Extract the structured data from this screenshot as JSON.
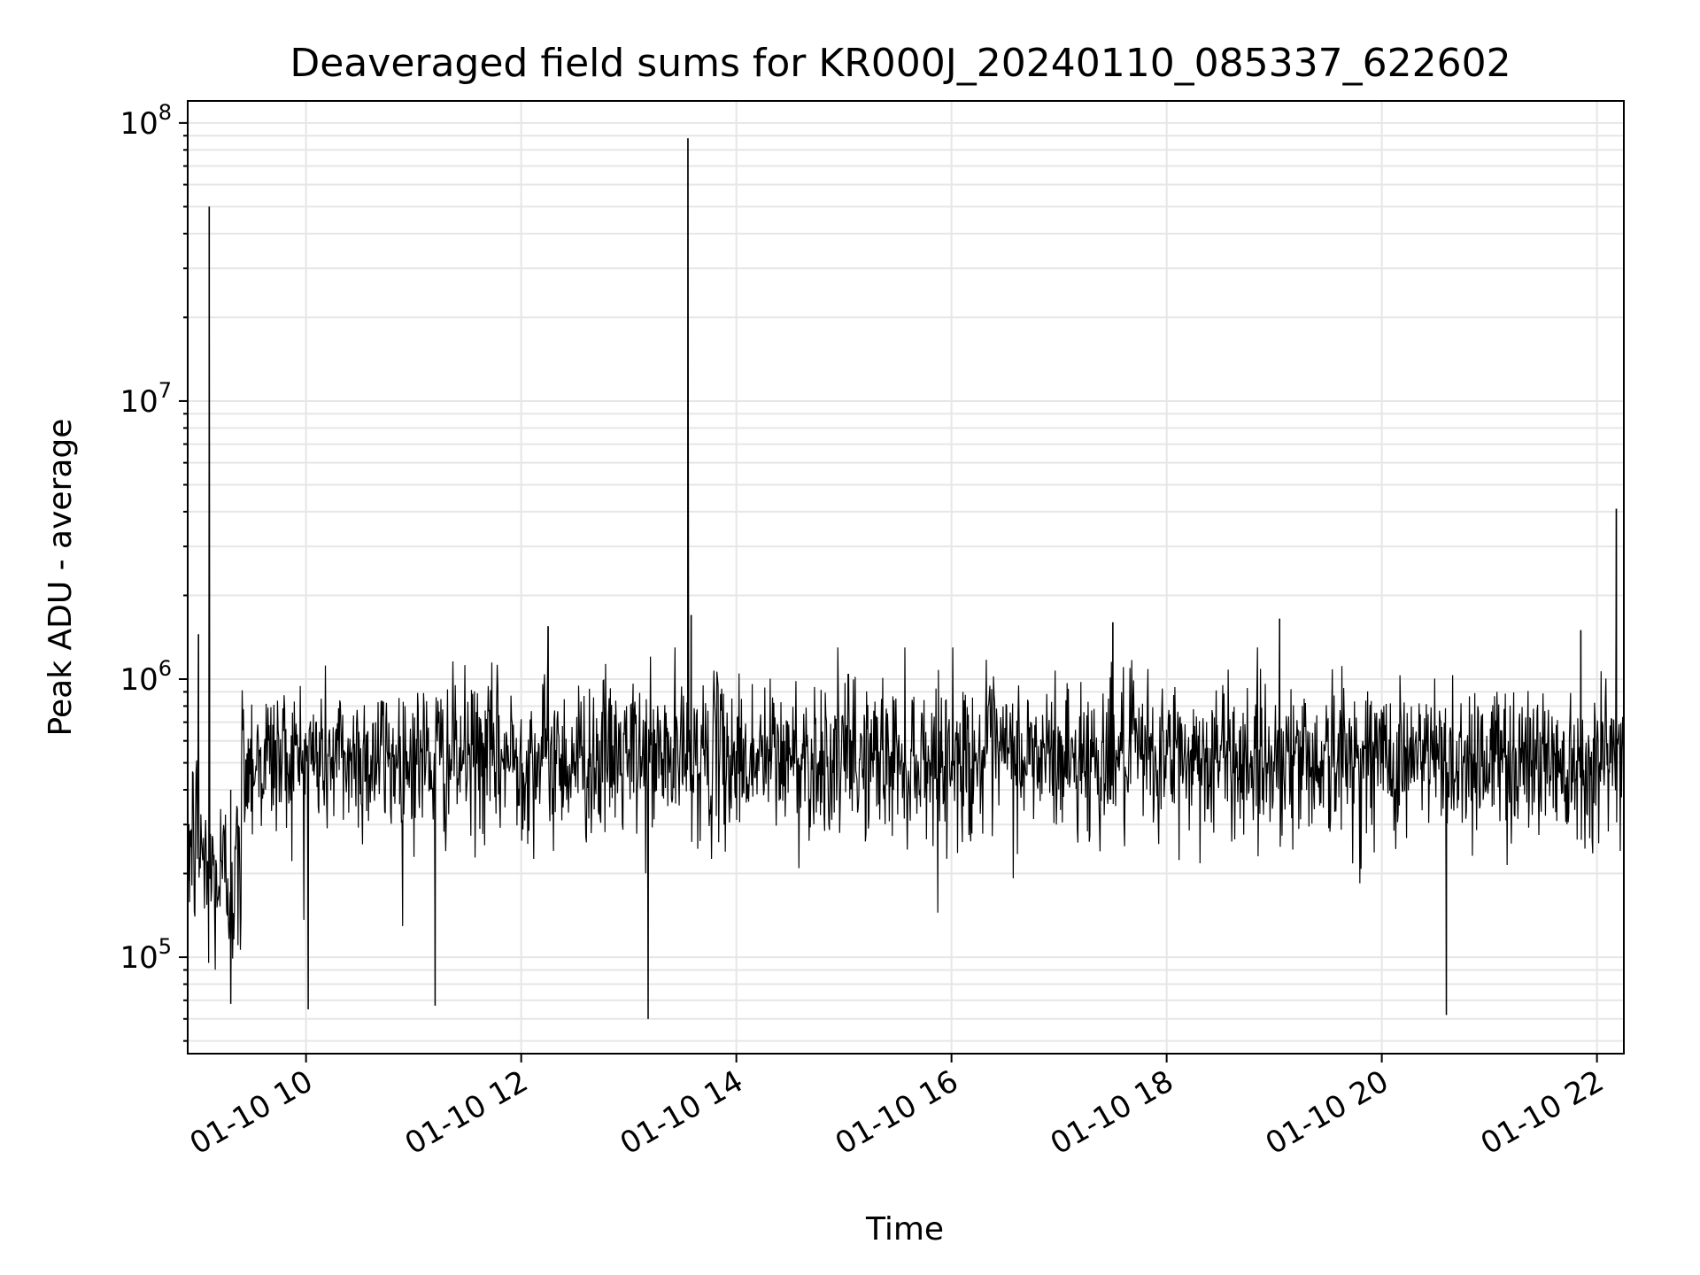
{
  "chart_data": {
    "type": "line",
    "title": "Deaveraged field sums for KR000J_20240110_085337_622602",
    "xlabel": "Time",
    "ylabel": "Peak ADU - average",
    "yscale": "log",
    "grid": true,
    "line_color": "#000000",
    "grid_color": "#e6e6e6",
    "xlim_hours": [
      8.9,
      22.25
    ],
    "ylim": [
      45000,
      120000000
    ],
    "x_ticks": [
      {
        "hour": 10,
        "label": "01-10 10"
      },
      {
        "hour": 12,
        "label": "01-10 12"
      },
      {
        "hour": 14,
        "label": "01-10 14"
      },
      {
        "hour": 16,
        "label": "01-10 16"
      },
      {
        "hour": 18,
        "label": "01-10 18"
      },
      {
        "hour": 20,
        "label": "01-10 20"
      },
      {
        "hour": 22,
        "label": "01-10 22"
      }
    ],
    "y_ticks": [
      {
        "value": 100000,
        "base": "10",
        "exp": "5"
      },
      {
        "value": 1000000,
        "base": "10",
        "exp": "6"
      },
      {
        "value": 10000000,
        "base": "10",
        "exp": "7"
      },
      {
        "value": 100000000,
        "base": "10",
        "exp": "8"
      }
    ],
    "segments": [
      {
        "start": 8.9,
        "end": 9.05,
        "median": 260000,
        "spread": 0.6
      },
      {
        "start": 9.05,
        "end": 9.4,
        "median": 190000,
        "spread": 0.55
      },
      {
        "start": 9.4,
        "end": 22.25,
        "median": 520000,
        "spread": 0.45
      }
    ],
    "peaks": [
      {
        "hour": 9.1,
        "value": 50000000
      },
      {
        "hour": 13.55,
        "value": 88000000
      },
      {
        "hour": 13.58,
        "value": 1700000
      },
      {
        "hour": 22.18,
        "value": 4100000
      },
      {
        "hour": 9.0,
        "value": 1450000
      },
      {
        "hour": 12.25,
        "value": 1550000
      },
      {
        "hour": 17.5,
        "value": 1600000
      },
      {
        "hour": 19.05,
        "value": 1650000
      },
      {
        "hour": 21.85,
        "value": 1500000
      }
    ],
    "dips": [
      {
        "hour": 13.18,
        "value": 60000
      },
      {
        "hour": 20.6,
        "value": 62000
      },
      {
        "hour": 10.02,
        "value": 65000
      },
      {
        "hour": 9.3,
        "value": 68000
      },
      {
        "hour": 11.2,
        "value": 67000
      }
    ],
    "sample_count": 2400
  }
}
